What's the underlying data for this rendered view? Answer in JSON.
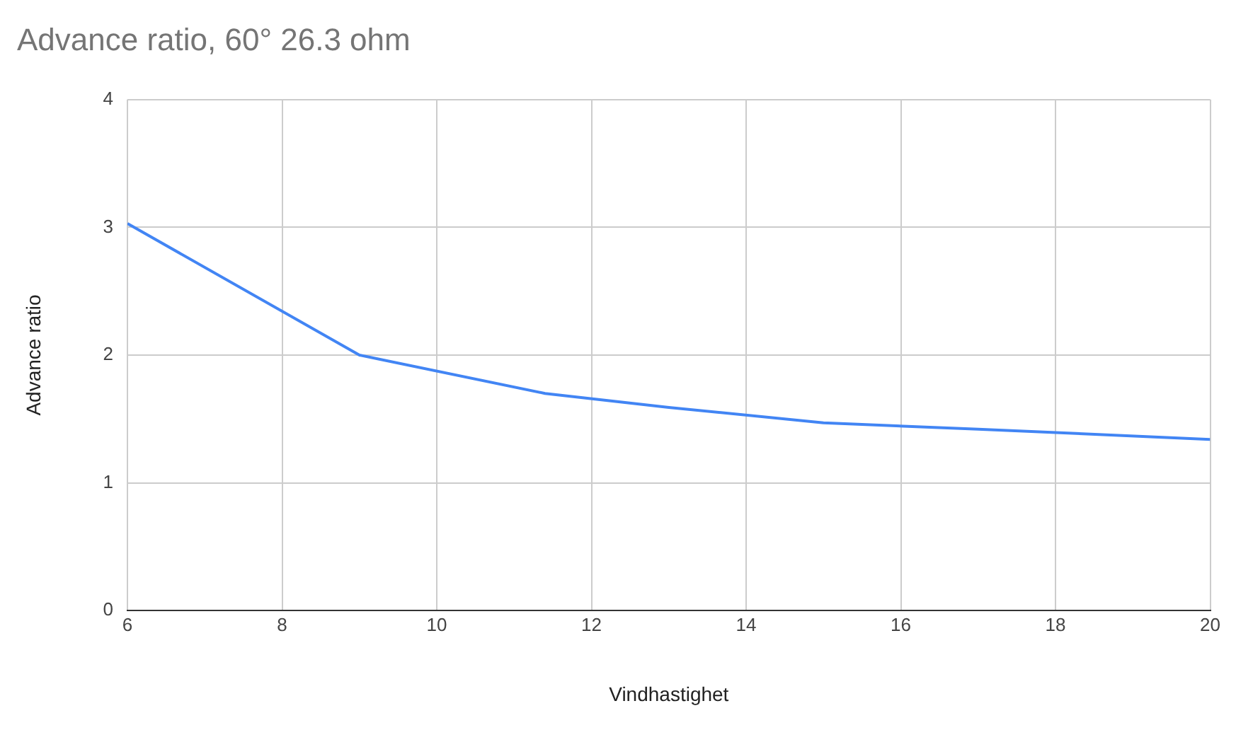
{
  "chart_data": {
    "type": "line",
    "title": "Advance ratio, 60° 26.3 ohm",
    "xlabel": "Vindhastighet",
    "ylabel": "Advance ratio",
    "x": [
      6,
      9,
      11.4,
      13,
      15,
      17,
      20
    ],
    "series": [
      {
        "color": "#4285f4",
        "values": [
          3.03,
          2.0,
          1.7,
          1.59,
          1.47,
          1.42,
          1.34
        ]
      }
    ],
    "xlim": [
      6,
      20
    ],
    "xticks": [
      6,
      8,
      10,
      12,
      14,
      16,
      18,
      20
    ],
    "ylim": [
      0,
      4
    ],
    "yticks": [
      0,
      1,
      2,
      3,
      4
    ],
    "grid": true,
    "legend": false,
    "marker": "none",
    "line_style": "solid"
  }
}
